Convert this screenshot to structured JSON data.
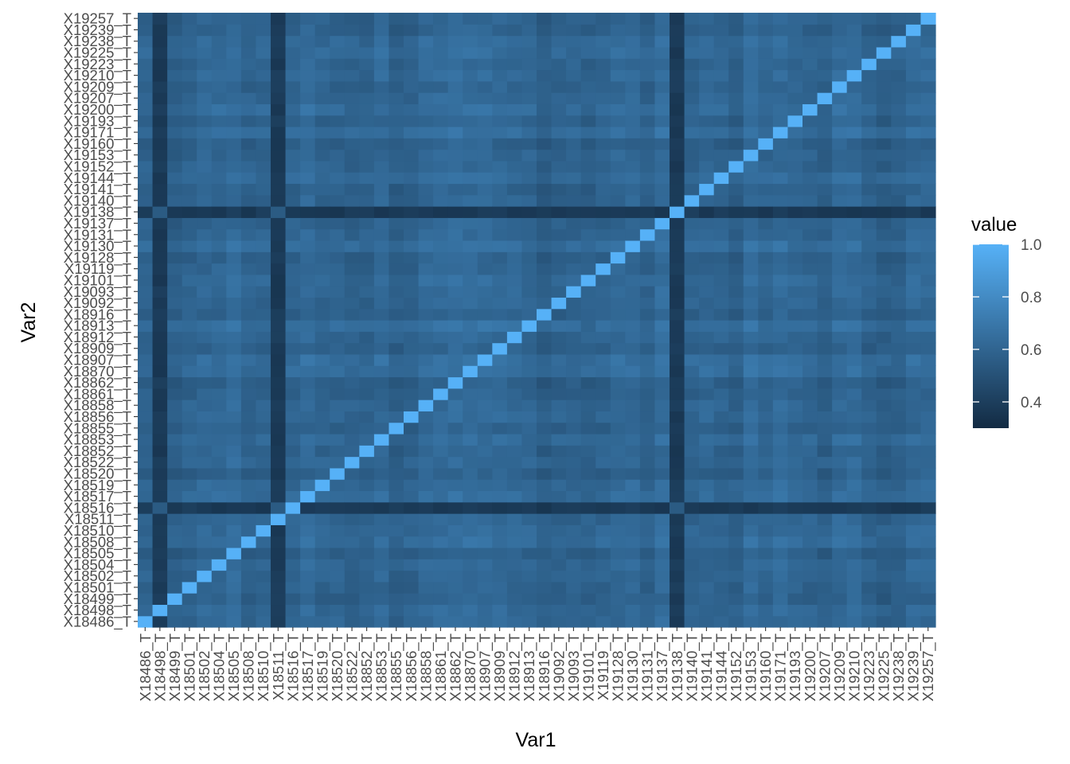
{
  "chart_data": {
    "type": "heatmap",
    "title": "",
    "xlabel": "Var1",
    "ylabel": "Var2",
    "categories": [
      "X18486_T",
      "X18498_T",
      "X18499_T",
      "X18501_T",
      "X18502_T",
      "X18504_T",
      "X18505_T",
      "X18508_T",
      "X18510_T",
      "X18511_T",
      "X18516_T",
      "X18517_T",
      "X18519_T",
      "X18520_T",
      "X18522_T",
      "X18852_T",
      "X18853_T",
      "X18855_T",
      "X18856_T",
      "X18858_T",
      "X18861_T",
      "X18862_T",
      "X18870_T",
      "X18907_T",
      "X18909_T",
      "X18912_T",
      "X18913_T",
      "X18916_T",
      "X19092_T",
      "X19093_T",
      "X19101_T",
      "X19119_T",
      "X19128_T",
      "X19130_T",
      "X19131_T",
      "X19137_T",
      "X19138_T",
      "X19140_T",
      "X19141_T",
      "X19144_T",
      "X19152_T",
      "X19153_T",
      "X19160_T",
      "X19171_T",
      "X19193_T",
      "X19200_T",
      "X19207_T",
      "X19209_T",
      "X19210_T",
      "X19223_T",
      "X19225_T",
      "X19238_T",
      "X19239_T",
      "X19257_T"
    ],
    "diagonal_value": 1.0,
    "low_corr_columns": [
      "X18498_T",
      "X18511_T",
      "X19138_T"
    ],
    "low_corr_rows": [
      "X18516_T",
      "X19138_T"
    ],
    "typical_range": [
      0.5,
      0.75
    ],
    "legend": {
      "title": "value",
      "ticks": [
        0.4,
        0.6,
        0.8,
        1.0
      ],
      "tick_labels": [
        "0.4",
        "0.6",
        "0.8",
        "1.0"
      ],
      "range": [
        0.3,
        1.0
      ],
      "low_color": "#132B43",
      "high_color": "#56B1F7",
      "position": "right"
    }
  }
}
